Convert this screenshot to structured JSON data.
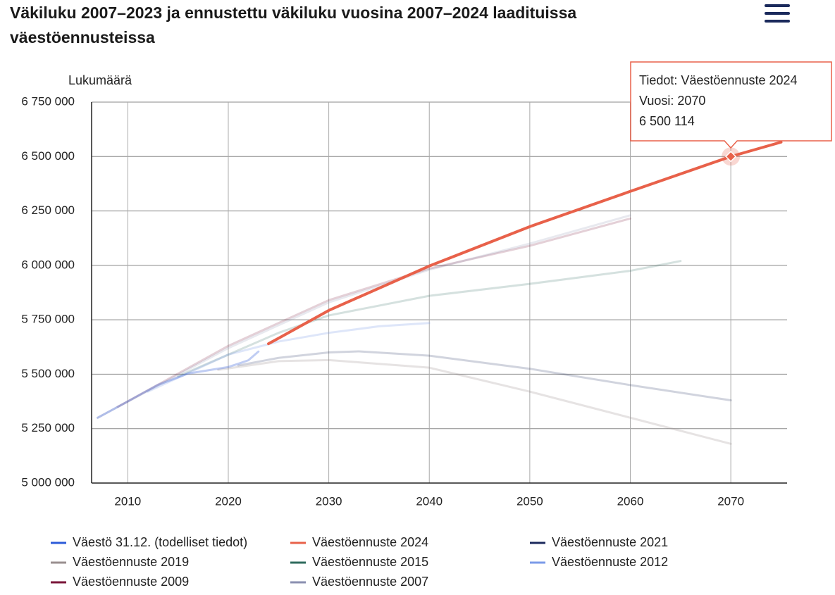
{
  "chart_data": {
    "type": "line",
    "title": "Väkiluku 2007–2023 ja ennustettu väkiluku vuosina 2007–2024 laadituissa väestöennusteissa",
    "y_label": "Lukumäärä",
    "xlim": [
      2006.4,
      2075.6
    ],
    "xticks": [
      2010,
      2020,
      2030,
      2040,
      2050,
      2060,
      2070
    ],
    "ylim": [
      5000000,
      6750000
    ],
    "yticks": [
      {
        "value": 5000000,
        "label": "5 000 000"
      },
      {
        "value": 5250000,
        "label": "5 250 000"
      },
      {
        "value": 5500000,
        "label": "5 500 000"
      },
      {
        "value": 5750000,
        "label": "5 750 000"
      },
      {
        "value": 6000000,
        "label": "6 000 000"
      },
      {
        "value": 6250000,
        "label": "6 250 000"
      },
      {
        "value": 6500000,
        "label": "6 500 000"
      },
      {
        "value": 6750000,
        "label": "6 750 000"
      }
    ],
    "grid": true,
    "series": [
      {
        "name": "Väestö 31.12. (todelliset tiedot)",
        "color": "#2d5bd8",
        "opacity": 0.3,
        "x": [
          2007,
          2010,
          2013,
          2016,
          2018,
          2020,
          2021,
          2022,
          2023
        ],
        "values": [
          5300000,
          5375000,
          5451000,
          5503000,
          5518000,
          5533000,
          5548000,
          5564000,
          5604000
        ]
      },
      {
        "name": "Väestöennuste 2024",
        "color": "#e8614a",
        "opacity": 1,
        "x": [
          2024,
          2025,
          2030,
          2040,
          2050,
          2060,
          2070,
          2075
        ],
        "values": [
          5640000,
          5665000,
          5793000,
          5997000,
          6178000,
          6340000,
          6500114,
          6566000
        ]
      },
      {
        "name": "Väestöennuste 2021",
        "color": "#1b2a5c",
        "opacity": 0.2,
        "x": [
          2021,
          2025,
          2030,
          2033,
          2040,
          2050,
          2060,
          2070
        ],
        "values": [
          5540000,
          5575000,
          5600000,
          5605000,
          5585000,
          5525000,
          5450000,
          5380000
        ]
      },
      {
        "name": "Väestöennuste 2019",
        "color": "#9a8f8f",
        "opacity": 0.25,
        "x": [
          2019,
          2025,
          2030,
          2040,
          2050,
          2060,
          2070
        ],
        "values": [
          5520000,
          5560000,
          5565000,
          5530000,
          5420000,
          5300000,
          5180000
        ]
      },
      {
        "name": "Väestöennuste 2015",
        "color": "#2f6b5e",
        "opacity": 0.2,
        "x": [
          2015,
          2020,
          2025,
          2030,
          2040,
          2050,
          2060,
          2065
        ],
        "values": [
          5490000,
          5590000,
          5690000,
          5770000,
          5860000,
          5915000,
          5975000,
          6020000
        ]
      },
      {
        "name": "Väestöennuste 2012",
        "color": "#7b9be8",
        "opacity": 0.25,
        "x": [
          2012,
          2020,
          2025,
          2030,
          2035,
          2040
        ],
        "values": [
          5420000,
          5590000,
          5650000,
          5690000,
          5720000,
          5735000
        ]
      },
      {
        "name": "Väestöennuste 2009",
        "color": "#7a1538",
        "opacity": 0.2,
        "x": [
          2009,
          2020,
          2030,
          2040,
          2050,
          2060
        ],
        "values": [
          5350000,
          5630000,
          5840000,
          5985000,
          6090000,
          6215000
        ]
      },
      {
        "name": "Väestöennuste 2007",
        "color": "#8a8fb0",
        "opacity": 0.2,
        "x": [
          2007,
          2020,
          2030,
          2040,
          2050,
          2060
        ],
        "values": [
          5300000,
          5620000,
          5830000,
          5980000,
          6100000,
          6230000
        ]
      }
    ],
    "tooltip": {
      "series_label": "Tiedot: Väestöennuste 2024",
      "year_label": "Vuosi: 2070",
      "value_label": "6 500 114"
    }
  }
}
